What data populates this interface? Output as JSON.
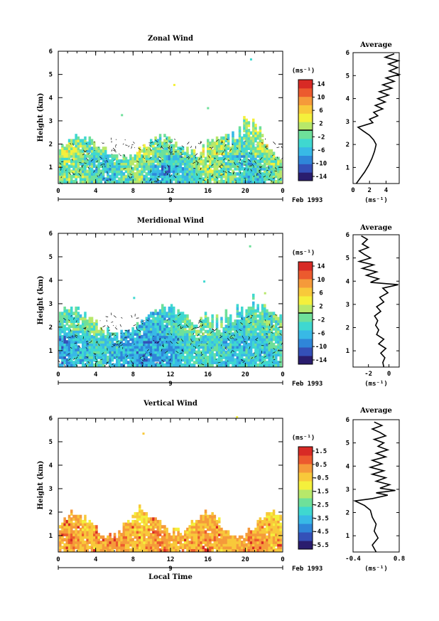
{
  "chart_data": [
    {
      "type": "heatmap",
      "title": "Zonal Wind",
      "ylabel": "Height (km)",
      "xlabel": "",
      "xlim": [
        0,
        24
      ],
      "ylim": [
        0.3,
        6
      ],
      "x_ticks": [
        "0",
        "4",
        "8",
        "12",
        "16",
        "20",
        "0"
      ],
      "y_ticks": [
        "1",
        "2",
        "3",
        "4",
        "5",
        "6"
      ],
      "date_marker": "9",
      "date_label": "Feb 1993",
      "colorbar": {
        "unit": "(ms⁻¹)",
        "ticks": [
          "14",
          "10",
          "6",
          "2",
          "-2",
          "-6",
          "-10",
          "-14"
        ],
        "range": [
          -16,
          16
        ],
        "contour_level": 0
      },
      "average_profile": {
        "title": "Average",
        "xlabel": "(ms⁻¹)",
        "x_ticks": [
          "0",
          "2",
          "4"
        ],
        "xlim": [
          0,
          5.6
        ],
        "points": [
          [
            0.4,
            0.3
          ],
          [
            0.8,
            0.5
          ],
          [
            1.4,
            0.8
          ],
          [
            1.9,
            1.1
          ],
          [
            2.3,
            1.4
          ],
          [
            2.6,
            1.7
          ],
          [
            2.8,
            2.0
          ],
          [
            2.5,
            2.2
          ],
          [
            2.0,
            2.4
          ],
          [
            1.2,
            2.6
          ],
          [
            0.6,
            2.75
          ],
          [
            1.5,
            2.85
          ],
          [
            2.4,
            2.95
          ],
          [
            2.0,
            3.1
          ],
          [
            3.0,
            3.25
          ],
          [
            2.5,
            3.4
          ],
          [
            3.6,
            3.55
          ],
          [
            2.7,
            3.7
          ],
          [
            3.9,
            3.85
          ],
          [
            3.0,
            4.0
          ],
          [
            4.3,
            4.15
          ],
          [
            3.2,
            4.3
          ],
          [
            4.7,
            4.45
          ],
          [
            3.6,
            4.6
          ],
          [
            5.0,
            4.75
          ],
          [
            4.0,
            4.9
          ],
          [
            5.6,
            5.05
          ],
          [
            4.4,
            5.2
          ],
          [
            5.4,
            5.35
          ],
          [
            4.3,
            5.5
          ],
          [
            5.5,
            5.65
          ],
          [
            3.9,
            5.8
          ],
          [
            5.0,
            5.95
          ]
        ]
      }
    },
    {
      "type": "heatmap",
      "title": "Meridional Wind",
      "ylabel": "Height (km)",
      "xlabel": "",
      "xlim": [
        0,
        24
      ],
      "ylim": [
        0.3,
        6
      ],
      "x_ticks": [
        "0",
        "4",
        "8",
        "12",
        "16",
        "20",
        "0"
      ],
      "y_ticks": [
        "1",
        "2",
        "3",
        "4",
        "5",
        "6"
      ],
      "date_marker": "9",
      "date_label": "Feb 1993",
      "colorbar": {
        "unit": "(ms⁻¹)",
        "ticks": [
          "14",
          "10",
          "6",
          "2",
          "-2",
          "-6",
          "-10",
          "-14"
        ],
        "range": [
          -16,
          16
        ],
        "contour_level": 0
      },
      "average_profile": {
        "title": "Average",
        "xlabel": "(ms⁻¹)",
        "x_ticks": [
          "-2",
          "0"
        ],
        "xlim": [
          -3.5,
          1.0
        ],
        "points": [
          [
            -0.5,
            0.3
          ],
          [
            -0.6,
            0.5
          ],
          [
            -0.4,
            0.7
          ],
          [
            -0.8,
            0.9
          ],
          [
            -0.3,
            1.1
          ],
          [
            -1.0,
            1.3
          ],
          [
            -0.5,
            1.5
          ],
          [
            -1.2,
            1.7
          ],
          [
            -1.0,
            1.9
          ],
          [
            -1.3,
            2.1
          ],
          [
            -1.1,
            2.3
          ],
          [
            -1.4,
            2.5
          ],
          [
            -0.8,
            2.7
          ],
          [
            -1.2,
            2.9
          ],
          [
            -0.5,
            3.1
          ],
          [
            -0.9,
            3.3
          ],
          [
            -0.1,
            3.5
          ],
          [
            -0.6,
            3.7
          ],
          [
            0.9,
            3.85
          ],
          [
            -1.8,
            3.95
          ],
          [
            -1.0,
            4.1
          ],
          [
            -2.2,
            4.25
          ],
          [
            -1.2,
            4.4
          ],
          [
            -2.6,
            4.55
          ],
          [
            -1.5,
            4.7
          ],
          [
            -2.9,
            4.85
          ],
          [
            -1.8,
            5.0
          ],
          [
            -2.4,
            5.15
          ],
          [
            -2.9,
            5.3
          ],
          [
            -2.0,
            5.45
          ],
          [
            -2.6,
            5.6
          ],
          [
            -2.1,
            5.8
          ],
          [
            -2.7,
            5.95
          ]
        ]
      }
    },
    {
      "type": "heatmap",
      "title": "Vertical Wind",
      "ylabel": "Height (km)",
      "xlabel": "Local Time",
      "xlim": [
        0,
        24
      ],
      "ylim": [
        0.3,
        6
      ],
      "x_ticks": [
        "0",
        "4",
        "8",
        "12",
        "16",
        "20",
        "0"
      ],
      "y_ticks": [
        "1",
        "2",
        "3",
        "4",
        "5",
        "6"
      ],
      "date_marker": "9",
      "date_label": "Feb 1993",
      "colorbar": {
        "unit": "(ms⁻¹)",
        "ticks": [
          "1.5",
          "0.5",
          "-0.5",
          "-1.5",
          "-2.5",
          "-3.5",
          "-4.5",
          "-5.5"
        ],
        "range": [
          -6,
          2
        ],
        "contour_level": null
      },
      "average_profile": {
        "title": "Average",
        "xlabel": "(ms⁻¹)",
        "x_ticks": [
          "-0.4",
          "0.8"
        ],
        "xlim": [
          -0.4,
          0.8
        ],
        "points": [
          [
            0.2,
            0.3
          ],
          [
            0.1,
            0.6
          ],
          [
            0.25,
            0.9
          ],
          [
            0.15,
            1.2
          ],
          [
            0.2,
            1.5
          ],
          [
            0.1,
            1.8
          ],
          [
            0.05,
            2.1
          ],
          [
            -0.1,
            2.3
          ],
          [
            -0.35,
            2.5
          ],
          [
            0.1,
            2.6
          ],
          [
            0.5,
            2.75
          ],
          [
            0.2,
            2.85
          ],
          [
            0.7,
            2.95
          ],
          [
            0.3,
            3.05
          ],
          [
            0.55,
            3.2
          ],
          [
            0.2,
            3.35
          ],
          [
            0.45,
            3.5
          ],
          [
            0.1,
            3.65
          ],
          [
            0.4,
            3.8
          ],
          [
            0.05,
            3.95
          ],
          [
            0.35,
            4.1
          ],
          [
            0.1,
            4.25
          ],
          [
            0.45,
            4.4
          ],
          [
            0.2,
            4.55
          ],
          [
            0.5,
            4.7
          ],
          [
            0.25,
            4.85
          ],
          [
            0.4,
            5.0
          ],
          [
            0.15,
            5.15
          ],
          [
            0.45,
            5.3
          ],
          [
            0.3,
            5.45
          ],
          [
            0.1,
            5.6
          ],
          [
            0.35,
            5.75
          ],
          [
            0.15,
            5.9
          ]
        ]
      }
    }
  ],
  "palette": [
    "#2a1d6e",
    "#3450b8",
    "#2f86d9",
    "#38b9e6",
    "#3fd8d0",
    "#6ee09a",
    "#b7e86a",
    "#f4f03c",
    "#f8c93a",
    "#f59a3a",
    "#ec5a2e",
    "#d82a25"
  ]
}
